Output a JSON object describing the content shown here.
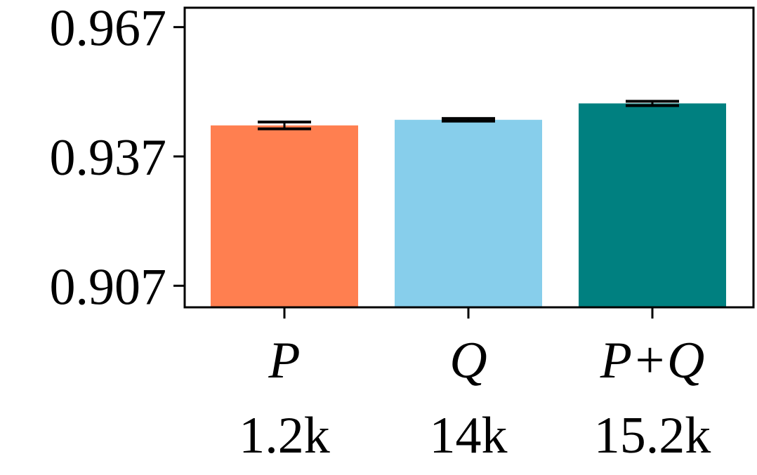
{
  "chart_data": {
    "type": "bar",
    "categories": [
      "P",
      "Q",
      "P+Q"
    ],
    "sublabels": [
      "1.2k",
      "14k",
      "15.2k"
    ],
    "values": [
      0.9442,
      0.9455,
      0.9493
    ],
    "errors": [
      0.0008,
      0.0003,
      0.0005
    ],
    "colors": [
      "#FF7F50",
      "#87CEEB",
      "#008080"
    ],
    "yticks": [
      0.907,
      0.937,
      0.967
    ],
    "ytick_labels": [
      "0.907",
      "0.937",
      "0.967"
    ],
    "ylim": [
      0.902,
      0.9715
    ],
    "grid": false,
    "title": "",
    "xlabel": "",
    "ylabel": ""
  }
}
